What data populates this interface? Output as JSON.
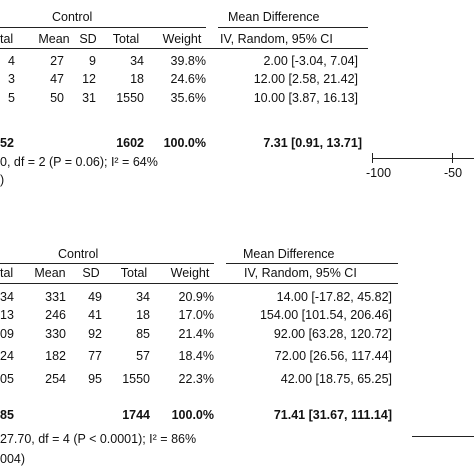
{
  "chart_data": [
    {
      "type": "table",
      "headers": {
        "group_label": "Control",
        "effect_label": "Mean Difference",
        "method_label": "IV, Random, 95% CI",
        "total_partial": "tal",
        "mean": "Mean",
        "sd": "SD",
        "total": "Total",
        "weight": "Weight"
      },
      "rows": [
        {
          "left_frag": "4",
          "mean": "27",
          "sd": "9",
          "total": "34",
          "weight": "39.8%",
          "ci": "2.00 [-3.04, 7.04]",
          "md": 2.0,
          "lo": -3.04,
          "hi": 7.04
        },
        {
          "left_frag": "3",
          "mean": "47",
          "sd": "12",
          "total": "18",
          "weight": "24.6%",
          "ci": "12.00 [2.58, 21.42]",
          "md": 12.0,
          "lo": 2.58,
          "hi": 21.42
        },
        {
          "left_frag": "5",
          "mean": "50",
          "sd": "31",
          "total": "1550",
          "weight": "35.6%",
          "ci": "10.00 [3.87, 16.13]",
          "md": 10.0,
          "lo": 3.87,
          "hi": 16.13
        }
      ],
      "total_row": {
        "left_frag": "52",
        "total": "1602",
        "weight": "100.0%",
        "ci": "7.31 [0.91, 13.71]",
        "md": 7.31,
        "lo": 0.91,
        "hi": 13.71
      },
      "heterogeneity_frag": "0, df = 2 (P = 0.06); I² = 64%",
      "overall_frag": ")",
      "axis": {
        "ticks": [
          -100,
          -50
        ],
        "tick_labels": [
          "-100",
          "-50"
        ]
      }
    },
    {
      "type": "table",
      "headers": {
        "group_label": "Control",
        "effect_label": "Mean Difference",
        "method_label": "IV, Random, 95% CI",
        "total_partial": "tal",
        "mean": "Mean",
        "sd": "SD",
        "total": "Total",
        "weight": "Weight"
      },
      "rows": [
        {
          "left_frag": "34",
          "mean": "331",
          "sd": "49",
          "total": "34",
          "weight": "20.9%",
          "ci": "14.00 [-17.82, 45.82]",
          "md": 14.0,
          "lo": -17.82,
          "hi": 45.82
        },
        {
          "left_frag": "13",
          "mean": "246",
          "sd": "41",
          "total": "18",
          "weight": "17.0%",
          "ci": "154.00 [101.54, 206.46]",
          "md": 154.0,
          "lo": 101.54,
          "hi": 206.46
        },
        {
          "left_frag": "09",
          "mean": "330",
          "sd": "92",
          "total": "85",
          "weight": "21.4%",
          "ci": "92.00 [63.28, 120.72]",
          "md": 92.0,
          "lo": 63.28,
          "hi": 120.72
        },
        {
          "left_frag": "24",
          "mean": "182",
          "sd": "77",
          "total": "57",
          "weight": "18.4%",
          "ci": "72.00 [26.56, 117.44]",
          "md": 72.0,
          "lo": 26.56,
          "hi": 117.44
        },
        {
          "left_frag": "05",
          "mean": "254",
          "sd": "95",
          "total": "1550",
          "weight": "22.3%",
          "ci": "42.00 [18.75, 65.25]",
          "md": 42.0,
          "lo": 18.75,
          "hi": 65.25
        }
      ],
      "total_row": {
        "left_frag": "85",
        "total": "1744",
        "weight": "100.0%",
        "ci": "71.41 [31.67, 111.14]",
        "md": 71.41,
        "lo": 31.67,
        "hi": 111.14
      },
      "heterogeneity_frag": "27.70, df = 4 (P < 0.0001); I² = 86%",
      "overall_frag": "004)"
    }
  ]
}
